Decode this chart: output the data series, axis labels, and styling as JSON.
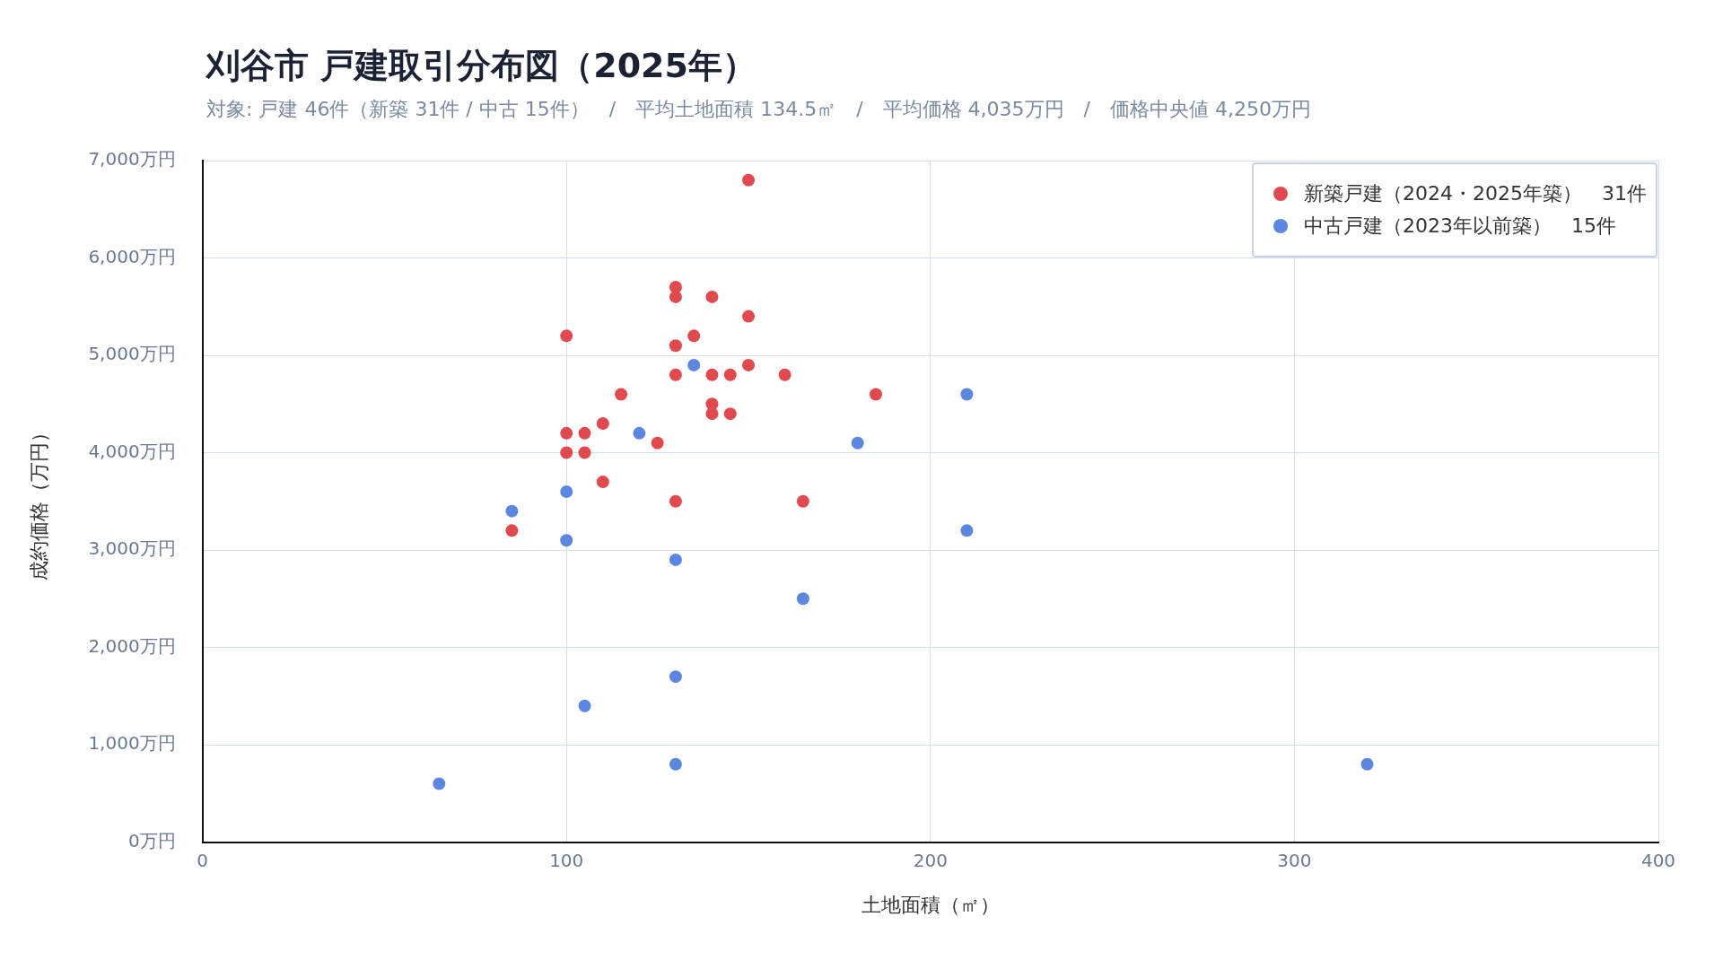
{
  "chart_data": {
    "type": "scatter",
    "title": "刈谷市 戸建取引分布図（2025年）",
    "subtitle": "対象: 戸建 46件（新築 31件 / 中古 15件）　/　平均土地面積 134.5㎡　/　平均価格 4,035万円　/　価格中央値 4,250万円",
    "xlabel": "土地面積（㎡）",
    "ylabel": "成約価格（万円）",
    "xlim": [
      0,
      400
    ],
    "xticks": [
      0,
      100,
      200,
      300,
      400
    ],
    "ylim": [
      0,
      7000
    ],
    "yticks": [
      {
        "value": 0,
        "label": "0万円"
      },
      {
        "value": 1000,
        "label": "1,000万円"
      },
      {
        "value": 2000,
        "label": "2,000万円"
      },
      {
        "value": 3000,
        "label": "3,000万円"
      },
      {
        "value": 4000,
        "label": "4,000万円"
      },
      {
        "value": 5000,
        "label": "5,000万円"
      },
      {
        "value": 6000,
        "label": "6,000万円"
      },
      {
        "value": 7000,
        "label": "7,000万円"
      }
    ],
    "grid": true,
    "legend": "top right",
    "marker": "circle",
    "series": [
      {
        "name": "新築戸建（2024・2025年築）　31件",
        "color": "#e04a4f",
        "x": [
          150,
          130,
          130,
          140,
          150,
          100,
          135,
          130,
          150,
          130,
          140,
          145,
          160,
          115,
          185,
          140,
          140,
          145,
          110,
          100,
          105,
          125,
          100,
          105,
          110,
          130,
          165,
          85
        ],
        "values": [
          6800,
          5700,
          5600,
          5600,
          5400,
          5200,
          5200,
          5100,
          4900,
          4800,
          4800,
          4800,
          4800,
          4600,
          4600,
          4500,
          4400,
          4400,
          4300,
          4200,
          4200,
          4100,
          4000,
          4000,
          3700,
          3500,
          3500,
          3200
        ]
      },
      {
        "name": "中古戸建（2023年以前築）　15件",
        "color": "#5b87e0",
        "x": [
          65,
          85,
          100,
          100,
          105,
          120,
          130,
          130,
          130,
          135,
          165,
          180,
          210,
          210,
          320
        ],
        "values": [
          600,
          3400,
          3600,
          3100,
          1400,
          4200,
          2900,
          1700,
          800,
          4900,
          2500,
          4100,
          4600,
          3200,
          800
        ]
      }
    ]
  }
}
